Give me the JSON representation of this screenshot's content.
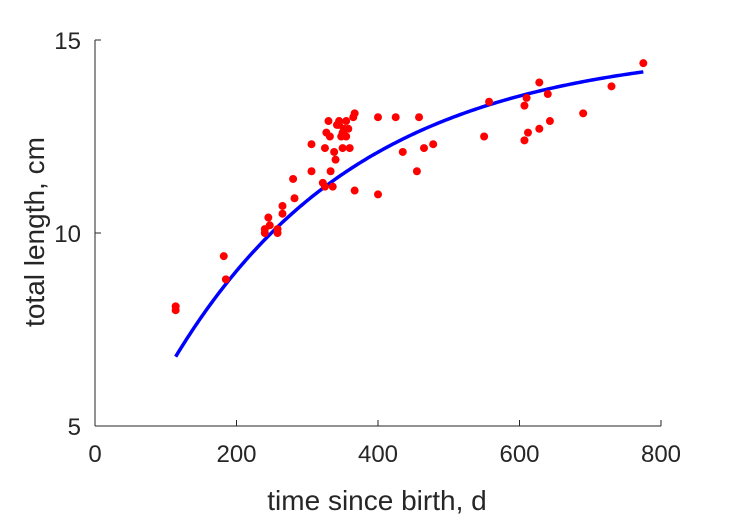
{
  "chart_data": {
    "type": "scatter",
    "title": "",
    "xlabel": "time since birth, d",
    "ylabel": "total length, cm",
    "xlim": [
      0,
      800
    ],
    "ylim": [
      5,
      15
    ],
    "xticks": [
      0,
      200,
      400,
      600,
      800
    ],
    "yticks": [
      5,
      10,
      15
    ],
    "grid": false,
    "legend": "none",
    "series": [
      {
        "kind": "points",
        "color": "#ff0000",
        "points": [
          [
            114,
            8.1
          ],
          [
            114,
            8.0
          ],
          [
            182,
            9.4
          ],
          [
            185,
            8.8
          ],
          [
            240,
            10.1
          ],
          [
            240,
            10.0
          ],
          [
            245,
            10.4
          ],
          [
            247,
            10.2
          ],
          [
            258,
            10.1
          ],
          [
            258,
            10.0
          ],
          [
            265,
            10.7
          ],
          [
            265,
            10.5
          ],
          [
            280,
            11.4
          ],
          [
            282,
            10.9
          ],
          [
            306,
            12.3
          ],
          [
            306,
            11.6
          ],
          [
            322,
            11.3
          ],
          [
            325,
            12.2
          ],
          [
            325,
            11.2
          ],
          [
            327,
            12.6
          ],
          [
            330,
            12.9
          ],
          [
            332,
            12.5
          ],
          [
            333,
            11.6
          ],
          [
            336,
            11.2
          ],
          [
            338,
            12.1
          ],
          [
            340,
            11.9
          ],
          [
            342,
            12.8
          ],
          [
            345,
            12.9
          ],
          [
            345,
            12.8
          ],
          [
            348,
            12.5
          ],
          [
            350,
            12.6
          ],
          [
            350,
            12.2
          ],
          [
            352,
            12.7
          ],
          [
            355,
            12.9
          ],
          [
            355,
            12.5
          ],
          [
            358,
            12.7
          ],
          [
            360,
            12.2
          ],
          [
            365,
            13.0
          ],
          [
            367,
            13.1
          ],
          [
            367,
            11.1
          ],
          [
            400,
            13.0
          ],
          [
            400,
            11.0
          ],
          [
            425,
            13.0
          ],
          [
            435,
            12.1
          ],
          [
            455,
            11.6
          ],
          [
            458,
            13.0
          ],
          [
            465,
            12.2
          ],
          [
            478,
            12.3
          ],
          [
            550,
            12.5
          ],
          [
            557,
            13.4
          ],
          [
            607,
            13.3
          ],
          [
            607,
            12.4
          ],
          [
            610,
            13.5
          ],
          [
            612,
            12.6
          ],
          [
            628,
            13.9
          ],
          [
            628,
            12.7
          ],
          [
            640,
            13.6
          ],
          [
            643,
            12.9
          ],
          [
            690,
            13.1
          ],
          [
            730,
            13.8
          ],
          [
            775,
            14.4
          ]
        ]
      },
      {
        "kind": "curve",
        "color": "#0000ff",
        "model": "von Bertalanffy",
        "params": {
          "Linf": 14.85,
          "L0": 2.5,
          "k": 0.00375
        },
        "x_range": [
          114,
          775
        ]
      }
    ]
  }
}
